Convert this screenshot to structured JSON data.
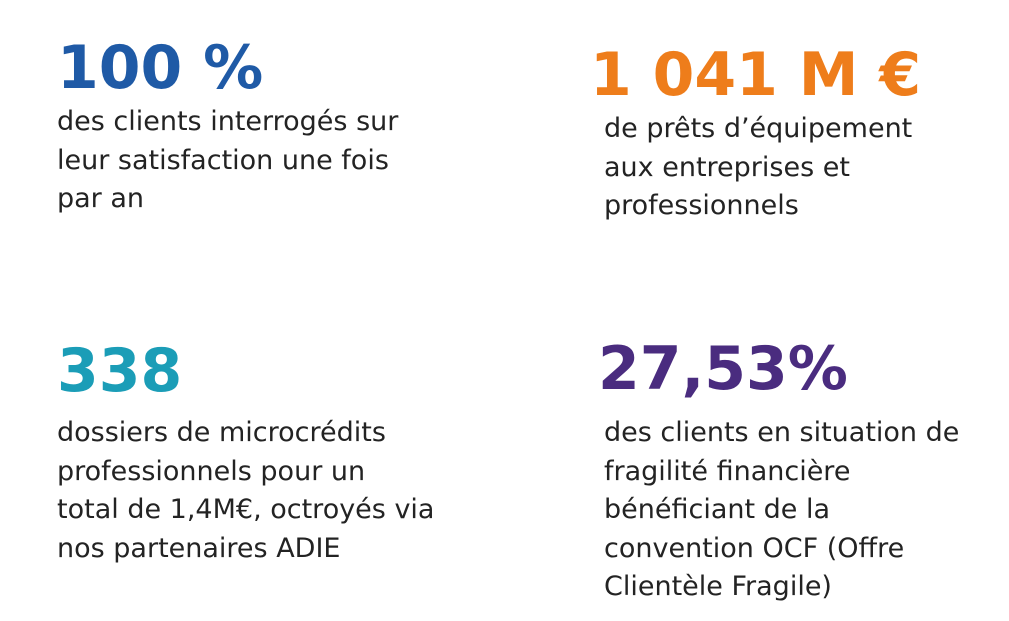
{
  "stats": [
    {
      "value": "100 %",
      "lines": [
        "des clients interrogés sur",
        "leur satisfaction une fois",
        "par an"
      ]
    },
    {
      "value": "1 041 M €",
      "lines": [
        "de prêts d’équipement",
        "aux entreprises et",
        "professionnels"
      ]
    },
    {
      "value": "338",
      "lines": [
        "dossiers de microcrédits",
        "professionnels pour un",
        "total de 1,4M€, octroyés via",
        "nos partenaires ADIE"
      ]
    },
    {
      "value": "27,53%",
      "lines": [
        "des clients en situation de",
        "fragilité financière",
        "bénéficiant de la",
        "convention OCF (Offre",
        "Clientèle Fragile)"
      ]
    }
  ]
}
